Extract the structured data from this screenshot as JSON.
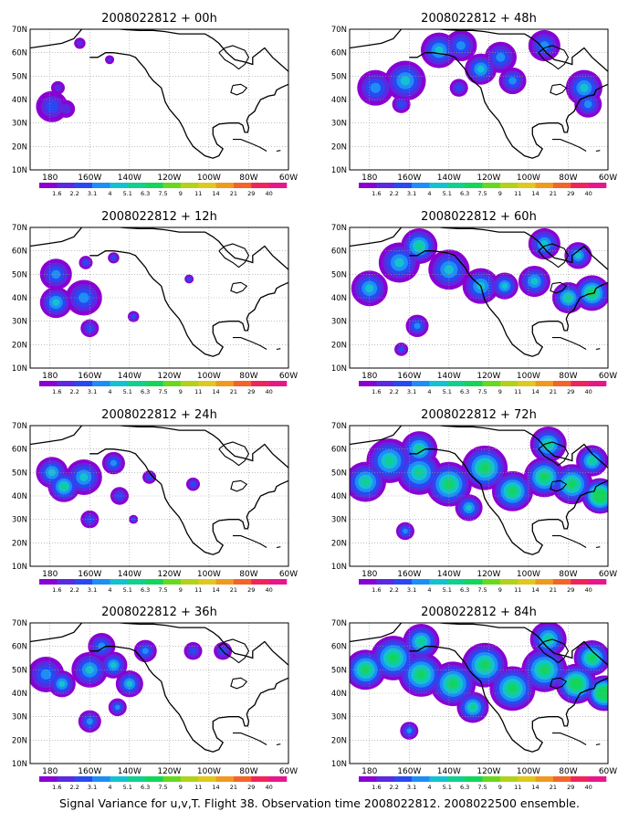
{
  "panels": [
    {
      "title": "2008022812 + 00h",
      "lead": "00h",
      "level": 0
    },
    {
      "title": "2008022812 + 48h",
      "lead": "48h",
      "level": 4
    },
    {
      "title": "2008022812 + 12h",
      "lead": "12h",
      "level": 1
    },
    {
      "title": "2008022812 + 60h",
      "lead": "60h",
      "level": 5
    },
    {
      "title": "2008022812 + 24h",
      "lead": "24h",
      "level": 2
    },
    {
      "title": "2008022812 + 72h",
      "lead": "72h",
      "level": 6
    },
    {
      "title": "2008022812 + 36h",
      "lead": "36h",
      "level": 3
    },
    {
      "title": "2008022812 + 84h",
      "lead": "84h",
      "level": 7
    }
  ],
  "axes": {
    "lon_range": [
      170,
      300
    ],
    "lat_range": [
      10,
      70
    ],
    "lon_ticks": [
      {
        "v": 180,
        "label": "180"
      },
      {
        "v": 200,
        "label": "160W"
      },
      {
        "v": 220,
        "label": "140W"
      },
      {
        "v": 240,
        "label": "120W"
      },
      {
        "v": 260,
        "label": "100W"
      },
      {
        "v": 280,
        "label": "80W"
      },
      {
        "v": 300,
        "label": "60W"
      }
    ],
    "lat_ticks": [
      {
        "v": 10,
        "label": "10N"
      },
      {
        "v": 20,
        "label": "20N"
      },
      {
        "v": 30,
        "label": "30N"
      },
      {
        "v": 40,
        "label": "40N"
      },
      {
        "v": 50,
        "label": "50N"
      },
      {
        "v": 60,
        "label": "60N"
      },
      {
        "v": 70,
        "label": "70N"
      }
    ],
    "grid": true
  },
  "colorbar": {
    "labels": [
      "1.6",
      "2.2",
      "3.1",
      "4",
      "5.1",
      "6.3",
      "7.5",
      "9",
      "11",
      "14",
      "21",
      "29",
      "40"
    ],
    "colors": [
      "#8a00d2",
      "#5a2ae0",
      "#2849f2",
      "#1e8ef6",
      "#13c2cf",
      "#10d091",
      "#14d55a",
      "#67d81e",
      "#b2d21a",
      "#e0c81c",
      "#ef9a1e",
      "#f2642a",
      "#f0245a",
      "#e8168c"
    ]
  },
  "caption": "Signal Variance for u,v,T. Flight 38. Observation time 2008022812. 2008022500 ensemble."
}
